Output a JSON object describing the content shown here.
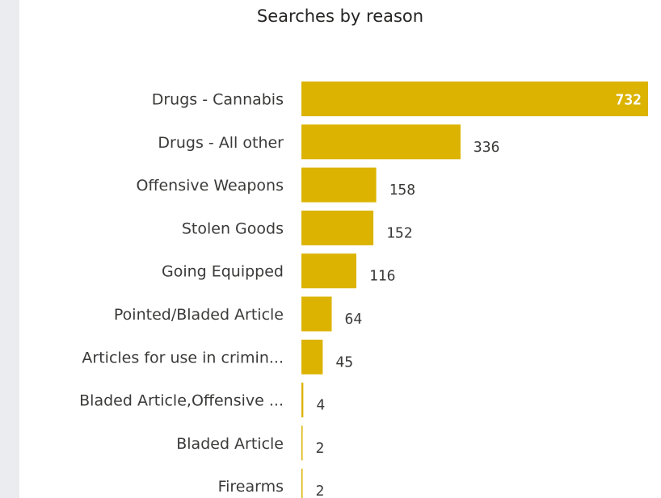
{
  "chart_data": {
    "type": "bar",
    "orientation": "horizontal",
    "title": "Searches by reason",
    "xlabel": "",
    "ylabel": "",
    "categories": [
      "Drugs - Cannabis",
      "Drugs - All other",
      "Offensive Weapons",
      "Stolen Goods",
      "Going Equipped",
      "Pointed/Bladed Article",
      "Articles for use in crimin...",
      "Bladed Article,Offensive ...",
      "Bladed Article",
      "Firearms"
    ],
    "values": [
      732,
      336,
      158,
      152,
      116,
      64,
      45,
      4,
      2,
      2
    ],
    "xlim": [
      0,
      732
    ],
    "grid": false,
    "legend": "none",
    "bar_color": "#dbb300"
  }
}
